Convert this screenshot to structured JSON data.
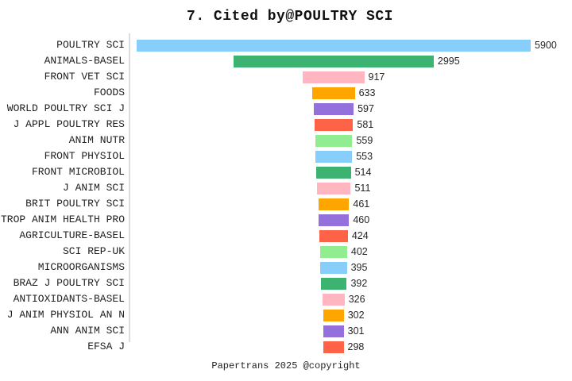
{
  "title": "7. Cited by@POULTRY SCI",
  "footer": "Papertrans 2025 @copyright",
  "chart_data": {
    "type": "bar",
    "subtype": "horizontal-centered-funnel",
    "title": "7. Cited by@POULTRY SCI",
    "xlabel": "",
    "ylabel": "",
    "grid": false,
    "legend": false,
    "value_axis_max": 5900,
    "categories": [
      "POULTRY SCI",
      "ANIMALS-BASEL",
      "FRONT VET SCI",
      "FOODS",
      "WORLD POULTRY SCI J",
      "J APPL POULTRY RES",
      "ANIM NUTR",
      "FRONT PHYSIOL",
      "FRONT MICROBIOL",
      "J ANIM SCI",
      "BRIT POULTRY SCI",
      "TROP ANIM HEALTH PRO",
      "AGRICULTURE-BASEL",
      "SCI REP-UK",
      "MICROORGANISMS",
      "BRAZ J POULTRY SCI",
      "ANTIOXIDANTS-BASEL",
      "J ANIM PHYSIOL AN N",
      "ANN ANIM SCI",
      "EFSA J"
    ],
    "values": [
      5900,
      2995,
      917,
      633,
      597,
      581,
      559,
      553,
      514,
      511,
      461,
      460,
      424,
      402,
      395,
      392,
      326,
      302,
      301,
      298
    ],
    "bar_colors": [
      "#87CEFA",
      "#3CB371",
      "#FFB6C1",
      "#FFA500",
      "#9370DB",
      "#FF6347",
      "#90EE90",
      "#87CEFA",
      "#3CB371",
      "#FFB6C1",
      "#FFA500",
      "#9370DB",
      "#FF6347",
      "#90EE90",
      "#87CEFA",
      "#3CB371",
      "#FFB6C1",
      "#FFA500",
      "#9370DB",
      "#FF6347"
    ],
    "palette_cycle": [
      "#87CEFA",
      "#3CB371",
      "#FFB6C1",
      "#FFA500",
      "#9370DB",
      "#FF6347",
      "#90EE90"
    ],
    "axis_line_color": "#dcdcdc",
    "category_label_color": "#1f1f1f",
    "value_label_color": "#262626"
  }
}
